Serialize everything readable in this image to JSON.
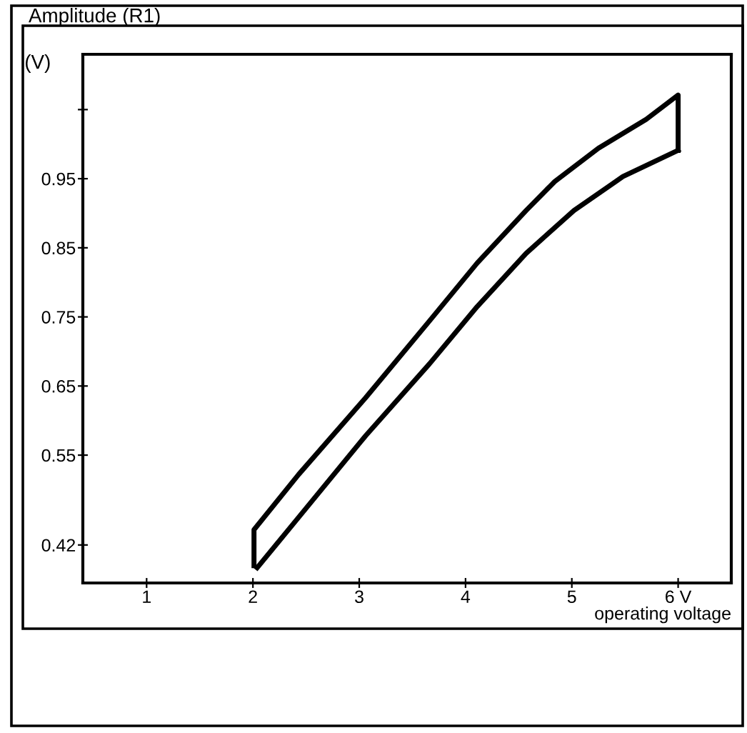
{
  "chart_data": {
    "type": "line",
    "title": "Amplitude (R1)",
    "ylabel": "(V)",
    "xlabel": "operating voltage",
    "series": [
      {
        "color": "#000000",
        "x": [
          2.01,
          2.01,
          2.43,
          3.06,
          3.66,
          4.11,
          4.57,
          4.84,
          5.25,
          5.7,
          6.0,
          6.0
        ],
        "values": [
          0.39,
          0.442,
          0.522,
          0.633,
          0.744,
          0.828,
          0.904,
          0.946,
          0.994,
          1.036,
          1.071,
          0.991
        ]
      },
      {
        "color": "#000000",
        "x": [
          2.04,
          2.43,
          3.06,
          3.66,
          4.11,
          4.57,
          5.02,
          5.48,
          6.0
        ],
        "values": [
          0.387,
          0.46,
          0.578,
          0.682,
          0.765,
          0.842,
          0.904,
          0.953,
          0.991
        ]
      }
    ],
    "xlim": [
      0.4,
      6.5
    ],
    "ylim": [
      0.365,
      1.13
    ],
    "xticks": [
      1,
      2,
      3,
      4,
      5,
      {
        "value": 6,
        "label": "6 V"
      }
    ],
    "yticks": [
      0.42,
      0.55,
      0.65,
      0.75,
      0.85,
      0.95,
      {
        "value": 1.05,
        "label": null
      }
    ],
    "grid": false,
    "marker": "none",
    "line_style": "solid"
  }
}
